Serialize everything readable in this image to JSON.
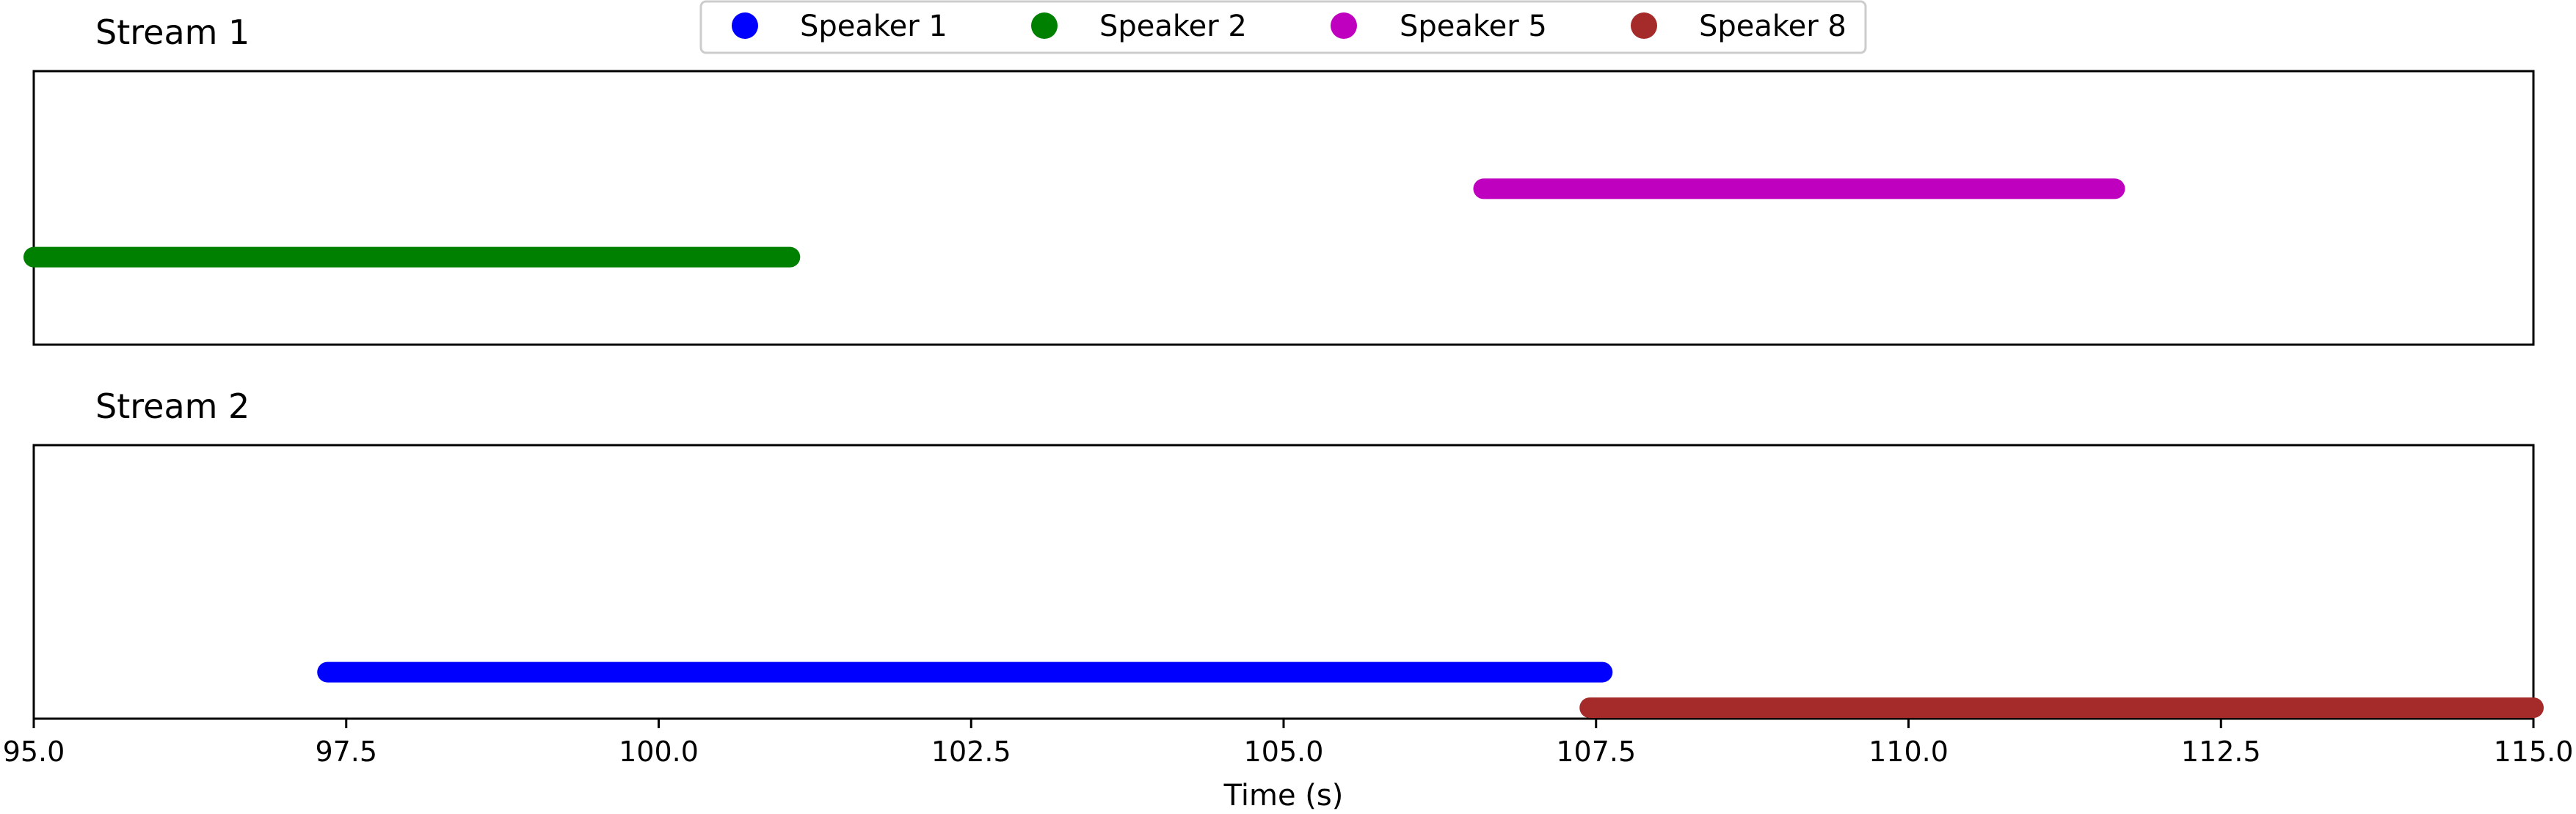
{
  "chart_data": {
    "type": "timeline",
    "xlabel": "Time (s)",
    "xlim": [
      95.0,
      115.0
    ],
    "x_ticks": [
      "95.0",
      "97.5",
      "100.0",
      "102.5",
      "105.0",
      "107.5",
      "110.0",
      "112.5",
      "115.0"
    ],
    "grid": false,
    "legend": {
      "placement": "top-center",
      "entries": [
        {
          "name": "Speaker 1",
          "color": "#0000ff"
        },
        {
          "name": "Speaker 2",
          "color": "#008000"
        },
        {
          "name": "Speaker 5",
          "color": "#bf00bf"
        },
        {
          "name": "Speaker 8",
          "color": "#a52a2a"
        }
      ]
    },
    "panels": [
      {
        "title": "Stream 1",
        "segments": [
          {
            "speaker": "Speaker 2",
            "start": 95.0,
            "end": 101.05,
            "level": 0.32
          },
          {
            "speaker": "Speaker 5",
            "start": 106.6,
            "end": 111.65,
            "level": 0.57
          }
        ]
      },
      {
        "title": "Stream 2",
        "segments": [
          {
            "speaker": "Speaker 1",
            "start": 97.35,
            "end": 107.55,
            "level": 0.17
          },
          {
            "speaker": "Speaker 8",
            "start": 107.45,
            "end": 115.0,
            "level": 0.04
          }
        ]
      }
    ]
  }
}
